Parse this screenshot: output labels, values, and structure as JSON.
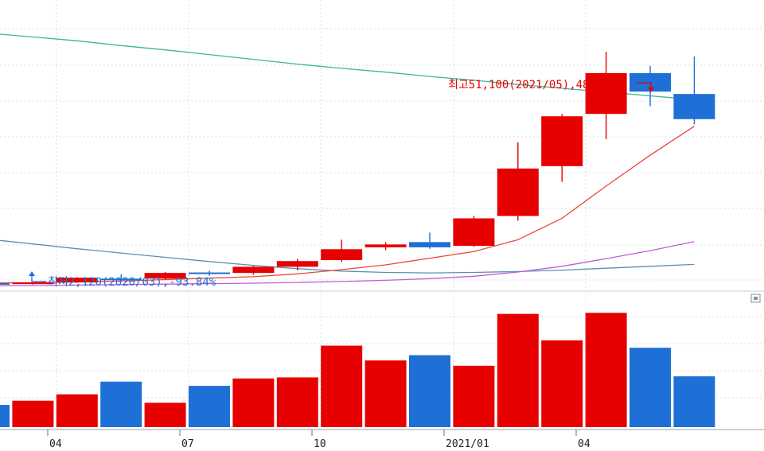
{
  "chart_data": {
    "type": "candlestick",
    "price": {
      "ylim": [
        0,
        62000
      ],
      "candles": [
        {
          "label": "2020/03",
          "open": 2200,
          "high": 2600,
          "low": 2120,
          "close": 2350,
          "color": "blue"
        },
        {
          "label": "2020/04",
          "open": 2150,
          "high": 2500,
          "low": 2050,
          "close": 2500,
          "color": "red"
        },
        {
          "label": "2020/05",
          "open": 2500,
          "high": 3600,
          "low": 2400,
          "close": 3500,
          "color": "red"
        },
        {
          "label": "2020/06",
          "open": 3300,
          "high": 4200,
          "low": 2900,
          "close": 3200,
          "color": "blue"
        },
        {
          "label": "2020/07",
          "open": 3300,
          "high": 4700,
          "low": 3000,
          "close": 4500,
          "color": "red"
        },
        {
          "label": "2020/08",
          "open": 4600,
          "high": 5000,
          "low": 3900,
          "close": 4300,
          "color": "blue"
        },
        {
          "label": "2020/09",
          "open": 4500,
          "high": 6000,
          "low": 4100,
          "close": 5800,
          "color": "red"
        },
        {
          "label": "2020/10",
          "open": 5800,
          "high": 7500,
          "low": 5000,
          "close": 7000,
          "color": "red"
        },
        {
          "label": "2020/11",
          "open": 7200,
          "high": 11500,
          "low": 6800,
          "close": 9500,
          "color": "red"
        },
        {
          "label": "2020/12",
          "open": 9900,
          "high": 11000,
          "low": 9300,
          "close": 10500,
          "color": "red"
        },
        {
          "label": "2021/01",
          "open": 11000,
          "high": 13000,
          "low": 9600,
          "close": 9900,
          "color": "blue"
        },
        {
          "label": "2021/02",
          "open": 10200,
          "high": 16500,
          "low": 10000,
          "close": 16000,
          "color": "red"
        },
        {
          "label": "2021/03",
          "open": 16500,
          "high": 32000,
          "low": 15500,
          "close": 26500,
          "color": "red"
        },
        {
          "label": "2021/04",
          "open": 27000,
          "high": 38000,
          "low": 23700,
          "close": 37500,
          "color": "red"
        },
        {
          "label": "2021/05",
          "open": 38000,
          "high": 51100,
          "low": 32700,
          "close": 46600,
          "color": "red"
        },
        {
          "label": "2021/06",
          "open": 46600,
          "high": 48100,
          "low": 39600,
          "close": 42700,
          "color": "blue"
        },
        {
          "label": "2021/07",
          "open": 42200,
          "high": 50100,
          "low": 35800,
          "close": 36900,
          "color": "blue"
        }
      ],
      "ma_short": [
        2400,
        2450,
        2600,
        2800,
        3100,
        3400,
        3700,
        4300,
        5200,
        6200,
        7600,
        9000,
        11500,
        16000,
        22800,
        29300,
        35400
      ],
      "ma_mid": [
        1800,
        1850,
        1950,
        2050,
        2150,
        2250,
        2350,
        2500,
        2700,
        2950,
        3300,
        3800,
        4700,
        5900,
        7500,
        9200,
        11100
      ],
      "ma_long": [
        55000,
        54200,
        53400,
        52400,
        51500,
        50500,
        49500,
        48500,
        47600,
        46800,
        45900,
        45100,
        44200,
        43400,
        42600,
        41800,
        41000
      ],
      "ma_base": [
        11600,
        10600,
        9600,
        8700,
        7800,
        6900,
        6100,
        5400,
        4900,
        4600,
        4500,
        4600,
        4800,
        5100,
        5500,
        5900,
        6300
      ],
      "ma_colors": {
        "short": "#e8473a",
        "mid": "#c25cd8",
        "long": "#3bb596",
        "base": "#5a8fb8"
      }
    },
    "volume": {
      "values": [
        21,
        25,
        31,
        43,
        23,
        39,
        46,
        47,
        77,
        63,
        68,
        58,
        107,
        82,
        108,
        75,
        48
      ],
      "ylim": [
        0,
        118
      ]
    },
    "annotations": {
      "high": "최고51,100(2021/05),48.55%",
      "low": "최저2,120(2020/03),-93.84%"
    },
    "x_ticks": [
      {
        "label": "04",
        "index": 1
      },
      {
        "label": "07",
        "index": 4
      },
      {
        "label": "10",
        "index": 7
      },
      {
        "label": "2021/01",
        "index": 10
      },
      {
        "label": "04",
        "index": 13
      }
    ],
    "colors": {
      "up": "#e60000",
      "down": "#1e6fd6"
    },
    "grid": true
  }
}
